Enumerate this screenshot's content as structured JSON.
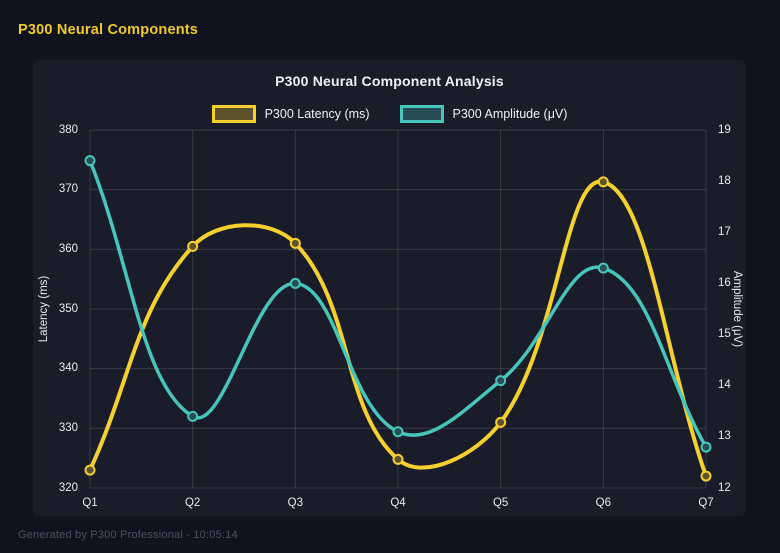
{
  "header": {
    "title": "P300 Neural Components"
  },
  "footer": {
    "text": "Generated by P300 Professional - 10:05:14"
  },
  "colors": {
    "page_bg": "#10121e",
    "card_bg": "#1a1c2a",
    "grid": "rgba(255,255,255,0.13)",
    "tick_text": "#e8eaf0",
    "title_text": "#eef0f6",
    "header_accent": "#f0c929",
    "footer_text": "#4b5063",
    "latency_yellow": "#f5d02e",
    "amplitude_teal": "#46c5ba"
  },
  "chart_data": {
    "type": "line",
    "title": "P300 Neural Component Analysis",
    "categories": [
      "Q1",
      "Q2",
      "Q3",
      "Q4",
      "Q5",
      "Q6",
      "Q7"
    ],
    "series": [
      {
        "name": "P300 Latency (ms)",
        "axis": "left",
        "color": "#f5d02e",
        "point_fill": "rgba(245,208,46,0.30)",
        "line_width": 4,
        "values": [
          323,
          360.5,
          361,
          324.8,
          331,
          371.3,
          322
        ]
      },
      {
        "name": "P300 Amplitude (μV)",
        "axis": "right",
        "color": "#46c5ba",
        "point_fill": "rgba(70,197,186,0.30)",
        "line_width": 3.5,
        "values": [
          18.4,
          13.4,
          16.0,
          13.1,
          14.1,
          16.3,
          12.8
        ]
      }
    ],
    "axes": {
      "left": {
        "label": "Latency (ms)",
        "min": 320,
        "max": 380,
        "step": 10
      },
      "right": {
        "label": "Amplitude (μV)",
        "min": 12,
        "max": 19,
        "step": 1
      }
    },
    "grid": true,
    "legend_position": "top",
    "line_tension": 0.4
  }
}
